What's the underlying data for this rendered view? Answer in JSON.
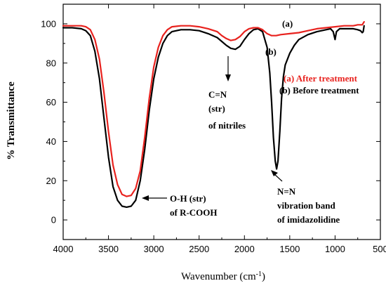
{
  "chart_data": {
    "type": "line",
    "xlabel": "Wavenumber (cm",
    "xlabel_sup": "-1",
    "xlabel_end": ")",
    "ylabel": "% Transmittance",
    "xlim": [
      4000,
      500
    ],
    "ylim": [
      -10,
      110
    ],
    "x_ticks": [
      "4000",
      "3500",
      "3000",
      "2500",
      "2000",
      "1500",
      "1000",
      "500"
    ],
    "y_ticks": [
      "0",
      "20",
      "40",
      "60",
      "80",
      "100"
    ],
    "grid": false,
    "legend_position": "right",
    "legend": [
      "(a) After treatment",
      "(b) Before treatment"
    ],
    "series": [
      {
        "name": "(a) After treatment",
        "color": "#e8221e",
        "curve_label": "(a)",
        "points": [
          [
            4000,
            99
          ],
          [
            3900,
            99
          ],
          [
            3800,
            99
          ],
          [
            3750,
            98.5
          ],
          [
            3700,
            97
          ],
          [
            3650,
            92
          ],
          [
            3600,
            82
          ],
          [
            3550,
            65
          ],
          [
            3500,
            45
          ],
          [
            3450,
            28
          ],
          [
            3400,
            18
          ],
          [
            3350,
            13
          ],
          [
            3300,
            12
          ],
          [
            3250,
            12.5
          ],
          [
            3200,
            16
          ],
          [
            3150,
            25
          ],
          [
            3100,
            42
          ],
          [
            3050,
            62
          ],
          [
            3000,
            78
          ],
          [
            2950,
            88
          ],
          [
            2900,
            94
          ],
          [
            2850,
            97
          ],
          [
            2800,
            98.5
          ],
          [
            2700,
            99
          ],
          [
            2600,
            99
          ],
          [
            2500,
            98.5
          ],
          [
            2400,
            97.5
          ],
          [
            2300,
            96
          ],
          [
            2250,
            94
          ],
          [
            2200,
            92.5
          ],
          [
            2150,
            91.5
          ],
          [
            2100,
            92
          ],
          [
            2050,
            93.5
          ],
          [
            2000,
            96
          ],
          [
            1950,
            97.5
          ],
          [
            1900,
            98
          ],
          [
            1850,
            98
          ],
          [
            1800,
            97
          ],
          [
            1750,
            95
          ],
          [
            1700,
            94
          ],
          [
            1650,
            94
          ],
          [
            1600,
            94.5
          ],
          [
            1500,
            95
          ],
          [
            1400,
            95.5
          ],
          [
            1300,
            96.5
          ],
          [
            1200,
            97.5
          ],
          [
            1100,
            98
          ],
          [
            1000,
            98.5
          ],
          [
            900,
            99
          ],
          [
            800,
            99
          ],
          [
            750,
            99.5
          ],
          [
            700,
            99.5
          ],
          [
            680,
            101
          ]
        ]
      },
      {
        "name": "(b) Before treatment",
        "color": "#000000",
        "curve_label": "(b)",
        "points": [
          [
            4000,
            98
          ],
          [
            3900,
            98
          ],
          [
            3800,
            97.5
          ],
          [
            3750,
            96.5
          ],
          [
            3700,
            94
          ],
          [
            3650,
            86
          ],
          [
            3600,
            72
          ],
          [
            3550,
            52
          ],
          [
            3500,
            32
          ],
          [
            3450,
            17
          ],
          [
            3400,
            10
          ],
          [
            3350,
            7
          ],
          [
            3300,
            6.5
          ],
          [
            3250,
            7
          ],
          [
            3200,
            10
          ],
          [
            3150,
            20
          ],
          [
            3100,
            36
          ],
          [
            3050,
            56
          ],
          [
            3000,
            72
          ],
          [
            2950,
            83
          ],
          [
            2900,
            90
          ],
          [
            2850,
            94
          ],
          [
            2800,
            96
          ],
          [
            2700,
            97
          ],
          [
            2600,
            97
          ],
          [
            2500,
            96.5
          ],
          [
            2400,
            95
          ],
          [
            2300,
            93
          ],
          [
            2250,
            91
          ],
          [
            2200,
            89
          ],
          [
            2150,
            87.5
          ],
          [
            2100,
            87
          ],
          [
            2050,
            88.5
          ],
          [
            2000,
            92
          ],
          [
            1950,
            95
          ],
          [
            1900,
            97
          ],
          [
            1850,
            97.5
          ],
          [
            1800,
            96
          ],
          [
            1750,
            88
          ],
          [
            1720,
            75
          ],
          [
            1700,
            60
          ],
          [
            1680,
            42
          ],
          [
            1660,
            30
          ],
          [
            1645,
            26
          ],
          [
            1630,
            30
          ],
          [
            1610,
            45
          ],
          [
            1590,
            62
          ],
          [
            1570,
            73
          ],
          [
            1550,
            79
          ],
          [
            1500,
            85
          ],
          [
            1450,
            89
          ],
          [
            1400,
            92
          ],
          [
            1300,
            94.5
          ],
          [
            1200,
            96
          ],
          [
            1100,
            97
          ],
          [
            1050,
            97.5
          ],
          [
            1020,
            96
          ],
          [
            1000,
            92
          ],
          [
            985,
            96
          ],
          [
            950,
            97.5
          ],
          [
            900,
            97.5
          ],
          [
            800,
            97.5
          ],
          [
            750,
            97
          ],
          [
            720,
            96.5
          ],
          [
            700,
            95.5
          ],
          [
            690,
            96
          ],
          [
            680,
            99
          ]
        ]
      }
    ],
    "annotations": [
      {
        "lines": [
          "C=N",
          "(str)",
          "of nitriles"
        ]
      },
      {
        "lines": [
          "O-H (str)",
          "of R-COOH"
        ]
      },
      {
        "lines": [
          "N=N",
          "vibration band",
          "of imidazolidine"
        ]
      }
    ]
  }
}
